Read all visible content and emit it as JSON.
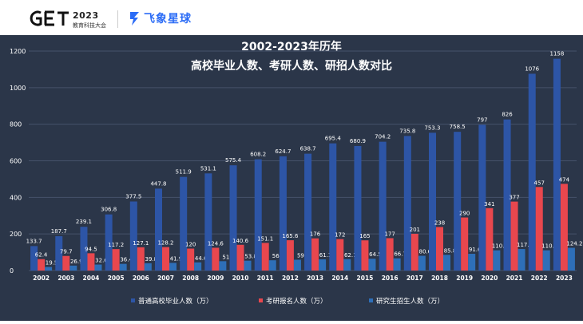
{
  "header": {
    "brand_mark": "GET",
    "brand_year": "2023",
    "brand_subtitle": "教育科技大会",
    "partner_name": "飞象星球"
  },
  "colors": {
    "background": "#2b3649",
    "series_grad": "#2d55a6",
    "series_exam": "#e8474e",
    "series_admit": "#2e6fb8",
    "grid": "#46526a",
    "text": "#ffffff"
  },
  "chart_data": {
    "type": "bar",
    "title": "2002-2023年历年",
    "subtitle": "高校毕业人数、考研人数、研招人数对比",
    "xlabel": "",
    "ylabel": "",
    "ylim": [
      0,
      1200
    ],
    "yticks": [
      0,
      200,
      400,
      600,
      800,
      1000,
      1200
    ],
    "grid": true,
    "legend_position": "bottom",
    "categories": [
      "2002",
      "2003",
      "2004",
      "2005",
      "2006",
      "2007",
      "2008",
      "2009",
      "2010",
      "2011",
      "2012",
      "2013",
      "2014",
      "2015",
      "2016",
      "2017",
      "2018",
      "2019",
      "2020",
      "2021",
      "2022",
      "2023"
    ],
    "series": [
      {
        "name": "普通高校毕业人数（万）",
        "color": "#2d55a6",
        "values": [
          133.7,
          187.7,
          239.1,
          306.8,
          377.5,
          447.8,
          511.9,
          531.1,
          575.4,
          608.2,
          624.7,
          638.7,
          695.4,
          680.9,
          704.2,
          735.8,
          753.3,
          758.5,
          797,
          826,
          1076,
          1158
        ]
      },
      {
        "name": "考研报名人数（万）",
        "color": "#e8474e",
        "values": [
          62.4,
          79.7,
          94.5,
          117.2,
          127.1,
          128.2,
          120,
          124.6,
          140.6,
          151.1,
          165.6,
          176,
          172,
          165,
          177,
          201,
          238,
          290,
          341,
          377,
          457,
          474
        ]
      },
      {
        "name": "研究生招生人数（万）",
        "color": "#2e6fb8",
        "values": [
          19.5,
          26.9,
          32.6,
          36.4,
          39.8,
          41.9,
          44.6,
          51,
          53.8,
          56,
          59,
          61.1,
          62.1,
          64.5,
          66.7,
          80.6,
          85.8,
          91.6,
          110.6,
          117.6,
          110.7,
          124.2
        ]
      }
    ]
  }
}
